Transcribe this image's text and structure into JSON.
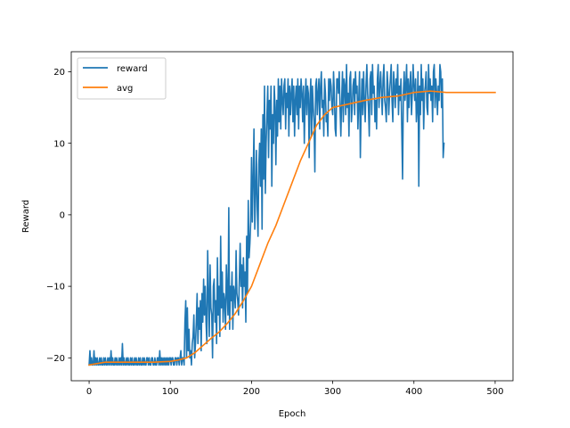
{
  "chart_data": {
    "type": "line",
    "title": "",
    "xlabel": "Epoch",
    "ylabel": "Reward",
    "xlim": [
      -22,
      522
    ],
    "ylim": [
      -23.2,
      22.8
    ],
    "xticks": [
      0,
      100,
      200,
      300,
      400,
      500
    ],
    "yticks": [
      -20,
      -10,
      0,
      10,
      20
    ],
    "grid": false,
    "legend": {
      "placement": "top-left"
    },
    "colors": {
      "reward": "#1f77b4",
      "avg": "#ff7f0e"
    },
    "series": [
      {
        "name": "reward",
        "x_start": 0,
        "x_step": 1,
        "values": [
          -21,
          -19,
          -21,
          -20,
          -21,
          -21,
          -19,
          -21,
          -20,
          -21,
          -20,
          -21,
          -21,
          -20,
          -21,
          -20,
          -21,
          -21,
          -20,
          -21,
          -20,
          -21,
          -21,
          -20,
          -21,
          -20,
          -21,
          -19,
          -21,
          -20,
          -21,
          -21,
          -20,
          -21,
          -20,
          -21,
          -21,
          -20,
          -21,
          -20,
          -21,
          -18,
          -21,
          -20,
          -21,
          -21,
          -20,
          -21,
          -20,
          -21,
          -21,
          -20,
          -21,
          -20,
          -21,
          -21,
          -20,
          -21,
          -20,
          -21,
          -21,
          -20,
          -21,
          -20,
          -21,
          -21,
          -20,
          -21,
          -20,
          -21,
          -21,
          -20,
          -20,
          -21,
          -20,
          -21,
          -21,
          -20,
          -20,
          -21,
          -21,
          -20,
          -21,
          -21,
          -20,
          -20,
          -21,
          -19,
          -21,
          -20,
          -21,
          -20,
          -21,
          -20,
          -21,
          -20,
          -21,
          -20,
          -21,
          -20,
          -20,
          -21,
          -20,
          -20,
          -21,
          -21,
          -20,
          -20,
          -21,
          -20,
          -20,
          -21,
          -20,
          -19,
          -21,
          -20,
          -20,
          -21,
          -15,
          -12,
          -20,
          -13,
          -19,
          -16,
          -20,
          -19,
          -21,
          -18,
          -17,
          -14,
          -20,
          -18,
          -15,
          -11,
          -18,
          -13,
          -16,
          -12,
          -19,
          -11,
          -15,
          -9,
          -14,
          -10,
          -15,
          -18,
          -5,
          -11,
          -17,
          -7,
          -13,
          -14,
          -20,
          -10,
          -9,
          -15,
          -12,
          -18,
          -6,
          -14,
          -10,
          -17,
          -3,
          -13,
          -8,
          -15,
          -11,
          -12,
          -16,
          -7,
          -11,
          -14,
          1,
          -16,
          -10,
          -12,
          -8,
          -16,
          -10,
          -11,
          -13,
          -5,
          -11,
          -12,
          -14,
          -9,
          -4,
          -10,
          -7,
          -13,
          -6,
          -10,
          -8,
          -15,
          -3,
          -11,
          2,
          -6,
          -4,
          -1,
          8,
          -1,
          5,
          12,
          -2,
          3,
          9,
          1,
          -3,
          7,
          10,
          4,
          12,
          -2,
          14,
          5,
          18,
          3,
          10,
          14,
          18,
          8,
          16,
          12,
          18,
          4,
          14,
          10,
          18,
          15,
          7,
          16,
          11,
          19,
          13,
          18,
          12,
          19,
          16,
          14,
          18,
          19,
          12,
          17,
          15,
          19,
          11,
          18,
          14,
          17,
          19,
          13,
          18,
          11,
          16,
          18,
          14,
          19,
          12,
          18,
          15,
          19,
          17,
          13,
          18,
          10,
          16,
          19,
          14,
          18,
          17,
          8,
          16,
          19,
          11,
          18,
          15,
          13,
          6,
          18,
          19,
          14,
          17,
          19,
          12,
          18,
          20,
          15,
          16,
          11,
          19,
          17,
          13,
          14,
          11,
          19,
          16,
          19,
          18,
          15,
          14,
          20,
          17,
          12,
          11,
          19,
          19,
          17,
          20,
          15,
          11,
          16,
          20,
          13,
          19,
          18,
          14,
          21,
          15,
          17,
          11,
          19,
          20,
          13,
          15,
          18,
          19,
          14,
          20,
          17,
          18,
          12,
          16,
          20,
          8,
          15,
          19,
          14,
          20,
          16,
          13,
          18,
          21,
          17,
          15,
          11,
          19,
          20,
          14,
          21,
          17,
          18,
          13,
          16,
          12,
          19,
          21,
          15,
          18,
          20,
          17,
          14,
          19,
          21,
          16,
          15,
          13,
          20,
          18,
          14,
          17,
          19,
          21,
          16,
          13,
          20,
          18,
          15,
          19,
          17,
          21,
          14,
          18,
          16,
          19,
          12,
          5,
          17,
          20,
          16,
          18,
          21,
          13,
          19,
          15,
          18,
          20,
          14,
          17,
          21,
          18,
          16,
          19,
          13,
          15,
          20,
          4,
          18,
          14,
          21,
          16,
          19,
          12,
          17,
          18,
          20,
          15,
          14,
          21,
          17,
          19,
          16,
          18,
          13,
          20,
          21,
          15,
          19,
          17,
          14,
          18,
          16,
          21,
          20,
          15,
          19,
          8,
          10
        ]
      },
      {
        "name": "avg",
        "points": [
          [
            0,
            -21
          ],
          [
            20,
            -20.6
          ],
          [
            60,
            -20.6
          ],
          [
            80,
            -20.6
          ],
          [
            100,
            -20.5
          ],
          [
            110,
            -20.3
          ],
          [
            120,
            -20
          ],
          [
            130,
            -19.3
          ],
          [
            140,
            -18.3
          ],
          [
            150,
            -17.3
          ],
          [
            160,
            -16.4
          ],
          [
            170,
            -15.2
          ],
          [
            180,
            -13.8
          ],
          [
            190,
            -12
          ],
          [
            200,
            -10
          ],
          [
            210,
            -7
          ],
          [
            220,
            -4
          ],
          [
            230,
            -1.5
          ],
          [
            240,
            1.5
          ],
          [
            250,
            4.5
          ],
          [
            260,
            7.5
          ],
          [
            270,
            10
          ],
          [
            280,
            12.5
          ],
          [
            290,
            14
          ],
          [
            300,
            15
          ],
          [
            320,
            15.5
          ],
          [
            340,
            16
          ],
          [
            360,
            16.4
          ],
          [
            380,
            16.6
          ],
          [
            400,
            17.1
          ],
          [
            420,
            17.3
          ],
          [
            440,
            17.1
          ],
          [
            460,
            17.1
          ],
          [
            480,
            17.1
          ],
          [
            500,
            17.1
          ]
        ]
      }
    ]
  }
}
